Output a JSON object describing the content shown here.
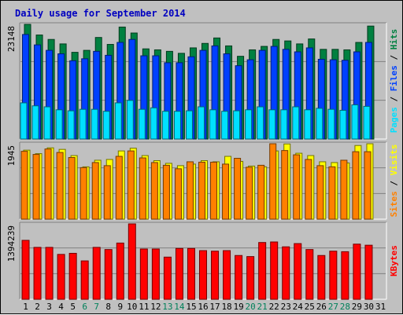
{
  "chart_data": {
    "type": "bar",
    "title": "Daily usage for September 2014",
    "days": [
      "1",
      "2",
      "3",
      "4",
      "5",
      "6",
      "7",
      "8",
      "9",
      "10",
      "11",
      "12",
      "13",
      "14",
      "15",
      "16",
      "17",
      "18",
      "19",
      "20",
      "21",
      "22",
      "23",
      "24",
      "25",
      "26",
      "27",
      "28",
      "29",
      "30",
      "31"
    ],
    "weekend_days": [
      6,
      7,
      13,
      14,
      20,
      21,
      27,
      28
    ],
    "panels": [
      {
        "id": "hits-files-pages",
        "max_label": "23148",
        "ymax": 23148,
        "legend": [
          {
            "label": "Pages",
            "color": "#00e0ff"
          },
          {
            "label": "Files",
            "color": "#0040ff"
          },
          {
            "label": "Hits",
            "color": "#008040"
          }
        ],
        "series": [
          {
            "name": "Hits",
            "color": "#008040",
            "values": [
              23148,
              21000,
              20100,
              19200,
              17500,
              17900,
              20500,
              19100,
              22600,
              21400,
              18200,
              18000,
              17700,
              17300,
              18400,
              19300,
              20400,
              18800,
              16700,
              18000,
              18700,
              20100,
              19800,
              19200,
              20200,
              18100,
              18100,
              18000,
              19500,
              22800,
              null
            ]
          },
          {
            "name": "Files",
            "color": "#0040ff",
            "values": [
              21100,
              19000,
              17900,
              17200,
              15800,
              16200,
              17700,
              16900,
              19500,
              20100,
              16800,
              16800,
              15400,
              15400,
              16600,
              17900,
              18800,
              17200,
              14800,
              16000,
              17900,
              18700,
              18100,
              17600,
              18400,
              16100,
              16000,
              15900,
              17600,
              19500,
              null
            ]
          },
          {
            "name": "Pages",
            "color": "#00e0ff",
            "values": [
              7300,
              6700,
              6500,
              5900,
              5700,
              6000,
              6000,
              5600,
              7300,
              7800,
              6000,
              6300,
              5600,
              5600,
              5700,
              6500,
              5900,
              5600,
              5700,
              5900,
              6500,
              5900,
              5900,
              6500,
              5900,
              6200,
              6000,
              5800,
              6900,
              6600,
              null
            ]
          }
        ]
      },
      {
        "id": "visits-sites",
        "max_label": "1945",
        "ymax": 1945,
        "legend": [
          {
            "label": "Sites",
            "color": "#ff8000"
          },
          {
            "label": "Visits",
            "color": "#ffff00"
          }
        ],
        "series": [
          {
            "name": "Visits",
            "color": "#ffff00",
            "values": [
              1780,
              1690,
              1840,
              1800,
              1640,
              1350,
              1520,
              1540,
              1760,
              1830,
              1640,
              1510,
              1440,
              1380,
              1420,
              1510,
              1480,
              1620,
              1490,
              1370,
              1350,
              1760,
              1940,
              1700,
              1640,
              1480,
              1460,
              1450,
              1900,
              1945,
              null
            ]
          },
          {
            "name": "Sites",
            "color": "#ff8000",
            "values": [
              1750,
              1670,
              1810,
              1720,
              1590,
              1330,
              1460,
              1380,
              1620,
              1760,
              1580,
              1460,
              1390,
              1300,
              1480,
              1470,
              1470,
              1420,
              1570,
              1340,
              1390,
              1945,
              1770,
              1660,
              1540,
              1380,
              1350,
              1520,
              1740,
              1740,
              null
            ]
          }
        ]
      },
      {
        "id": "kbytes",
        "max_label": "1394239",
        "ymax": 1394239,
        "legend": [
          {
            "label": "KBytes",
            "color": "#ff0000"
          }
        ],
        "series": [
          {
            "name": "KBytes",
            "color": "#ff0000",
            "values": [
              1090000,
              960000,
              960000,
              830000,
              850000,
              710000,
              960000,
              920000,
              1040000,
              1394239,
              930000,
              930000,
              780000,
              940000,
              940000,
              900000,
              890000,
              900000,
              810000,
              790000,
              1050000,
              1060000,
              970000,
              1030000,
              920000,
              810000,
              890000,
              880000,
              1020000,
              1000000,
              null
            ]
          }
        ]
      }
    ]
  }
}
